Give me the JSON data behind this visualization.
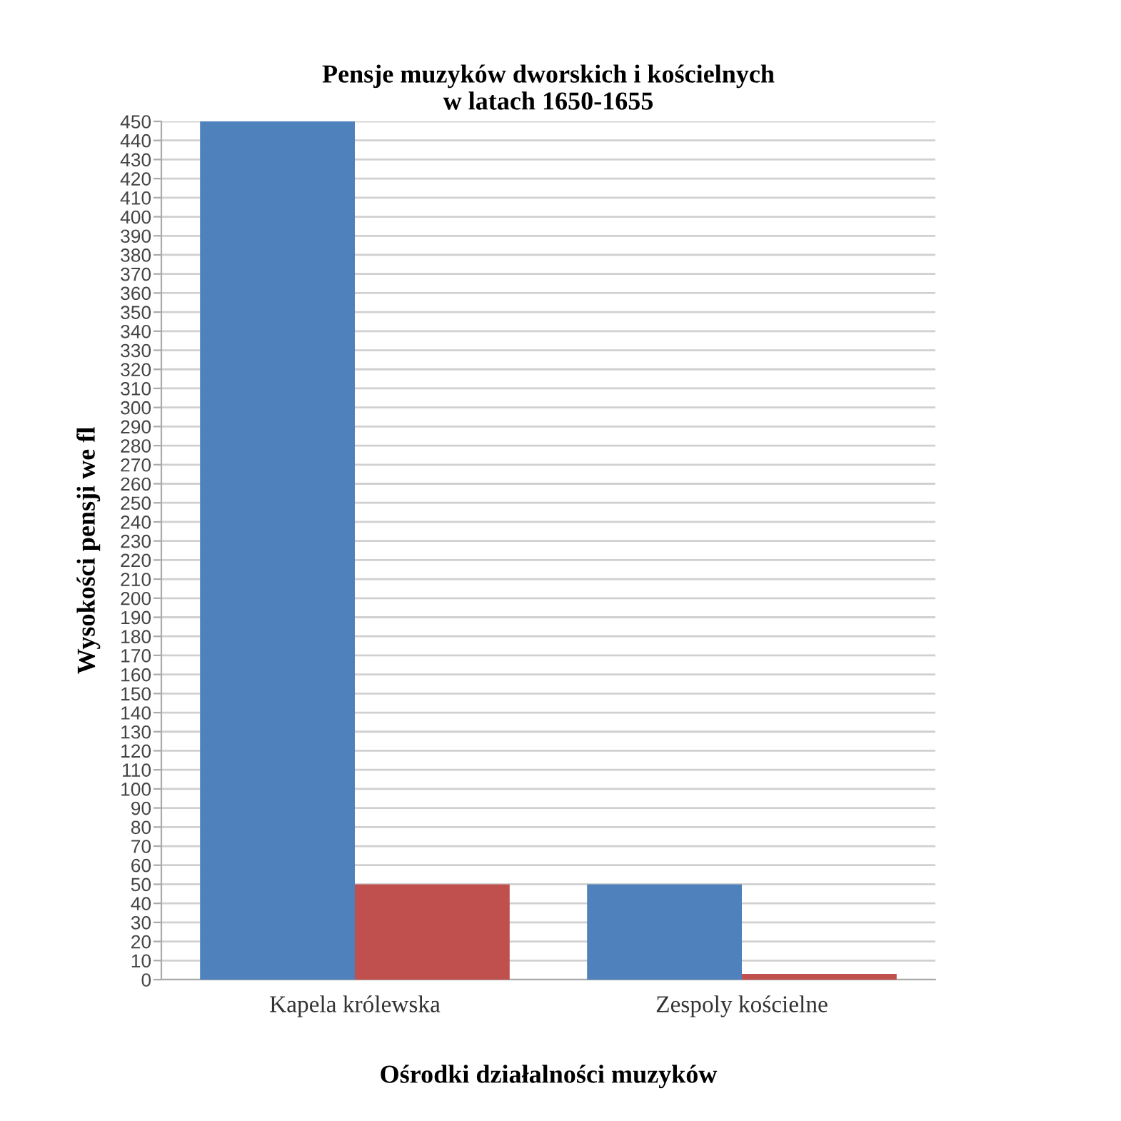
{
  "chart_data": {
    "type": "bar",
    "title": "Pensje muzyków dworskich i kościelnych\nw latach 1650-1655",
    "xlabel": "Ośrodki działalności muzyków",
    "ylabel": "Wysokości pensji we fl",
    "categories": [
      "Kapela królewska",
      "Zespoly kościelne"
    ],
    "series": [
      {
        "color": "#4f81bd",
        "values": [
          450,
          50
        ]
      },
      {
        "color": "#c0504d",
        "values": [
          50,
          3
        ]
      }
    ],
    "ylim": [
      0,
      450
    ],
    "yticks": [
      0,
      10,
      20,
      30,
      40,
      50,
      60,
      70,
      80,
      90,
      100,
      110,
      120,
      130,
      140,
      150,
      160,
      170,
      180,
      190,
      200,
      210,
      220,
      230,
      240,
      250,
      260,
      270,
      280,
      290,
      300,
      310,
      320,
      330,
      340,
      350,
      360,
      370,
      380,
      390,
      400,
      410,
      420,
      430,
      440,
      450
    ],
    "grid": "y",
    "legend": false
  }
}
